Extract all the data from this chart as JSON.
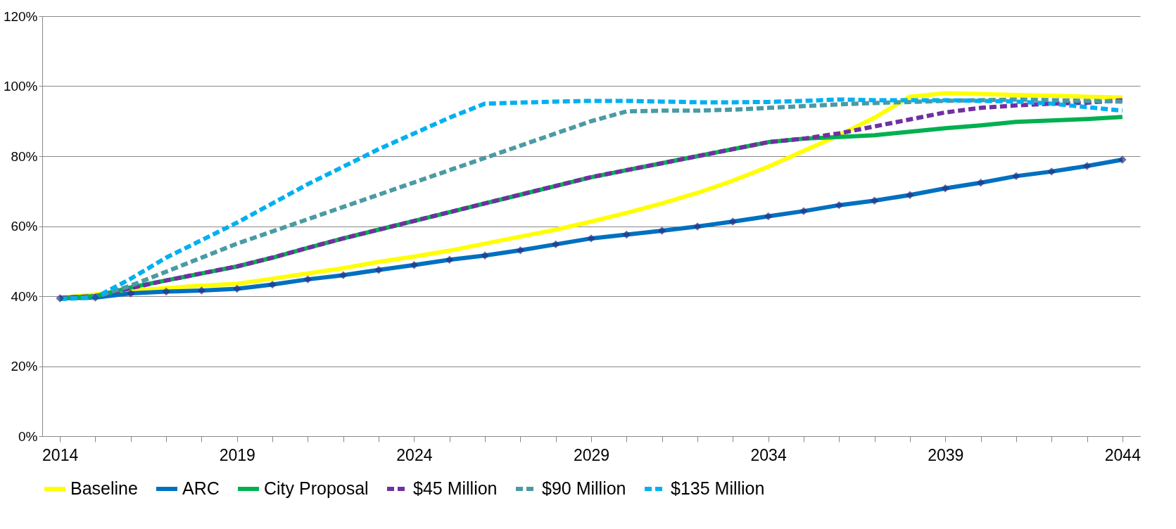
{
  "chart_data": {
    "type": "line",
    "categories": [
      "2014",
      null,
      null,
      null,
      null,
      "2019",
      null,
      null,
      null,
      null,
      "2024",
      null,
      null,
      null,
      null,
      "2029",
      null,
      null,
      null,
      null,
      "2034",
      null,
      null,
      null,
      null,
      "2039",
      null,
      null,
      null,
      null,
      "2044"
    ],
    "series": [
      {
        "name": "Baseline",
        "color": "#ffff00",
        "line_style": "solid",
        "values": [
          39.5,
          40.5,
          41.5,
          42.3,
          43,
          43.5,
          45,
          46.5,
          48,
          49.8,
          51.3,
          53,
          55,
          57,
          59,
          61.3,
          63.8,
          66.5,
          69.5,
          73,
          77,
          81.5,
          86,
          91,
          97,
          98,
          97.8,
          97.5,
          97.3,
          97,
          96.8
        ]
      },
      {
        "name": "ARC",
        "color": "#0070c0",
        "line_style": "solid",
        "marker": "diamond",
        "values": [
          39.4,
          39.6,
          40.8,
          41.3,
          41.6,
          42.1,
          43.3,
          44.8,
          46,
          47.5,
          48.9,
          50.4,
          51.6,
          53.1,
          54.8,
          56.5,
          57.6,
          58.7,
          59.9,
          61.3,
          62.8,
          64.3,
          66,
          67.3,
          68.9,
          70.8,
          72.4,
          74.3,
          75.6,
          77.2,
          79
        ]
      },
      {
        "name": "City Proposal",
        "color": "#00b050",
        "line_style": "solid",
        "values": [
          39.5,
          40,
          42.5,
          44.5,
          46.5,
          48.5,
          51,
          53.8,
          56.5,
          59,
          61.5,
          64,
          66.5,
          69,
          71.5,
          74,
          76,
          78,
          80,
          82,
          84,
          85,
          85.5,
          86,
          87,
          88,
          88.8,
          89.8,
          90.2,
          90.6,
          91.2
        ]
      },
      {
        "name": "$45 Million",
        "color": "#7030a0",
        "line_style": "dashed",
        "values": [
          39.5,
          40,
          42.3,
          44.5,
          46.5,
          48.5,
          51,
          53.8,
          56.5,
          59,
          61.5,
          64,
          66.5,
          69,
          71.5,
          74,
          76,
          78,
          80,
          82,
          84,
          85,
          86.5,
          88.5,
          90.5,
          92.5,
          93.8,
          94.5,
          95,
          95.3,
          96
        ]
      },
      {
        "name": "$90 Million",
        "color": "#4a9ba3",
        "line_style": "dashed",
        "values": [
          39.2,
          39.8,
          43,
          47,
          51,
          55,
          58.5,
          62,
          65.5,
          69,
          72.5,
          76,
          79.5,
          83,
          86.5,
          90,
          92.8,
          93,
          93,
          93.3,
          93.8,
          94.3,
          94.8,
          95.2,
          95.5,
          95.8,
          96,
          96.2,
          96,
          95.8,
          95.6
        ]
      },
      {
        "name": "$135 Million",
        "color": "#00b0f0",
        "line_style": "dashed",
        "values": [
          39.2,
          39.6,
          45,
          51,
          56,
          61,
          66.5,
          72,
          77,
          82,
          86.5,
          91,
          95,
          95.3,
          95.6,
          95.8,
          95.8,
          95.6,
          95.4,
          95.4,
          95.5,
          95.8,
          96.2,
          96,
          96,
          96,
          95.8,
          95.6,
          95,
          94,
          93
        ]
      }
    ],
    "ylim": [
      0,
      120
    ],
    "yticks": [
      {
        "value": 0,
        "label": "0%"
      },
      {
        "value": 20,
        "label": "20%"
      },
      {
        "value": 40,
        "label": "40%"
      },
      {
        "value": 60,
        "label": "60%"
      },
      {
        "value": 80,
        "label": "80%"
      },
      {
        "value": 100,
        "label": "100%"
      },
      {
        "value": 120,
        "label": "120%"
      }
    ],
    "grid": "y",
    "legend": "bottom"
  }
}
